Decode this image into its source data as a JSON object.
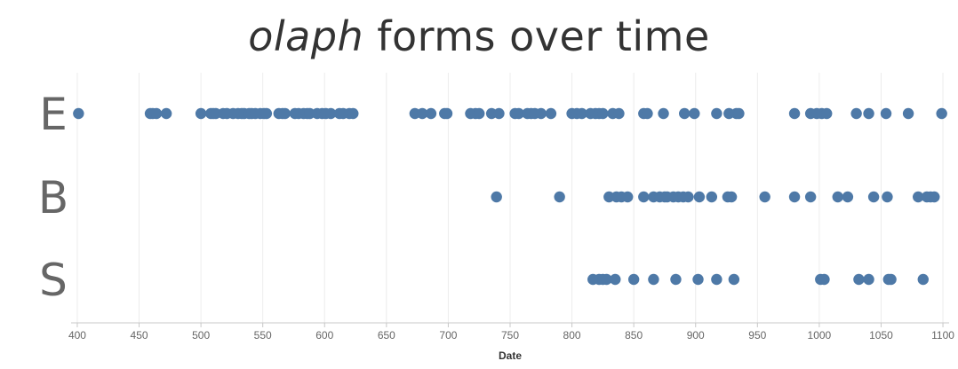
{
  "chart_data": {
    "type": "scatter",
    "title_italic": "olaph",
    "title_rest": " forms over time",
    "xlabel": "Date",
    "xlim": [
      395,
      1105
    ],
    "x_ticks": [
      400,
      450,
      500,
      550,
      600,
      650,
      700,
      750,
      800,
      850,
      900,
      950,
      1000,
      1050,
      1100
    ],
    "grid": true,
    "marker_color": "#4e79a7",
    "categories": [
      "E",
      "B",
      "S"
    ],
    "series": [
      {
        "category": "E",
        "x": [
          401,
          459,
          461,
          464,
          472,
          500,
          508,
          510,
          512,
          518,
          521,
          526,
          530,
          533,
          535,
          539,
          541,
          544,
          548,
          551,
          553,
          563,
          566,
          568,
          576,
          579,
          583,
          586,
          588,
          594,
          598,
          601,
          605,
          612,
          615,
          620,
          623,
          673,
          679,
          686,
          697,
          699,
          718,
          722,
          725,
          735,
          741,
          754,
          757,
          764,
          767,
          770,
          775,
          783,
          800,
          804,
          808,
          815,
          819,
          822,
          825,
          833,
          838,
          858,
          861,
          874,
          891,
          899,
          917,
          927,
          933,
          935,
          980,
          993,
          998,
          1002,
          1006,
          1030,
          1040,
          1054,
          1072,
          1099
        ]
      },
      {
        "category": "B",
        "x": [
          739,
          790,
          830,
          836,
          840,
          845,
          858,
          866,
          871,
          875,
          877,
          882,
          886,
          890,
          894,
          903,
          913,
          926,
          929,
          956,
          980,
          993,
          1015,
          1023,
          1044,
          1055,
          1080,
          1087,
          1090,
          1093
        ]
      },
      {
        "category": "S",
        "x": [
          817,
          822,
          825,
          828,
          835,
          850,
          866,
          884,
          902,
          917,
          931,
          1001,
          1004,
          1032,
          1040,
          1056,
          1058,
          1084
        ]
      }
    ]
  }
}
